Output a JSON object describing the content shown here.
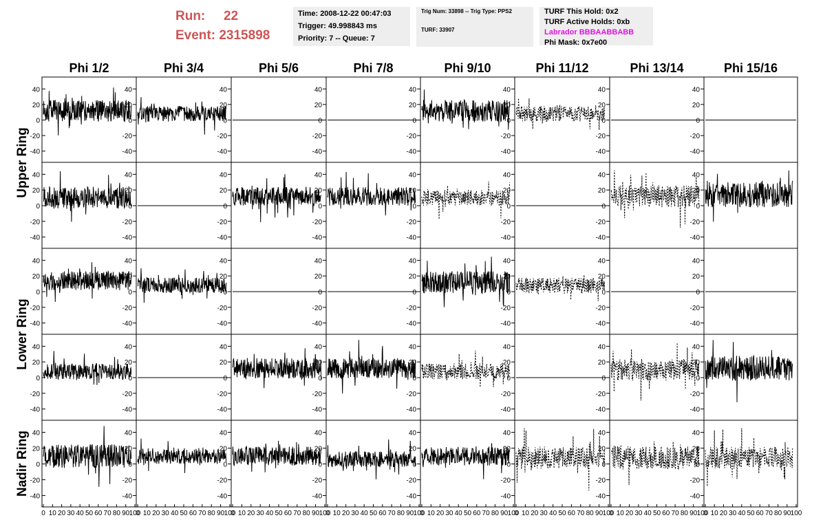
{
  "header": {
    "run_label": "Run:",
    "run_value": "22",
    "event_label": "Event:",
    "event_value": "2315898",
    "time": "Time: 2008-12-22 00:47:03",
    "trigger": "Trigger: 49.998843 ms",
    "priority": "Priority: 7 -- Queue: 7",
    "trig_num": "Trig Num: 33898 -- Trig Type: PPS2",
    "turf": "TURF: 33907",
    "turf_hold": "TURF This Hold: 0x2",
    "turf_active": "TURF Active Holds: 0xb",
    "labrador": "Labrador BBBAABBABB",
    "phi_mask": "Phi Mask: 0x7e00"
  },
  "chart_data": {
    "type": "line",
    "columns": [
      "Phi 1/2",
      "Phi 3/4",
      "Phi 5/6",
      "Phi 7/8",
      "Phi 9/10",
      "Phi 11/12",
      "Phi 13/14",
      "Phi 15/16"
    ],
    "ring_labels": [
      {
        "text": "Upper Ring",
        "rows": [
          0,
          1
        ]
      },
      {
        "text": "Lower Ring",
        "rows": [
          2,
          3
        ]
      },
      {
        "text": "Nadir Ring",
        "rows": [
          4
        ]
      }
    ],
    "xlim": [
      0,
      100
    ],
    "ylim": [
      -50,
      50
    ],
    "x_ticks": [
      "0",
      "10",
      "20",
      "30",
      "40",
      "50",
      "60",
      "70",
      "80",
      "90",
      "100"
    ],
    "y_ticks": [
      "-40",
      "-20",
      "0",
      "20",
      "40"
    ],
    "colors": {
      "trace": "#000000",
      "labrador": "#e012e0",
      "run": "#cc5555"
    },
    "panels": [
      [
        {
          "style": "solid",
          "active": true,
          "mean": 12,
          "amp": 14
        },
        {
          "style": "solid",
          "active": true,
          "mean": 8,
          "amp": 10
        },
        {
          "style": "flat",
          "active": false
        },
        {
          "style": "flat",
          "active": false
        },
        {
          "style": "solid",
          "active": true,
          "mean": 12,
          "amp": 14
        },
        {
          "style": "dashed",
          "active": true,
          "mean": 8,
          "amp": 10
        },
        {
          "style": "flat",
          "active": false
        },
        {
          "style": "flat",
          "active": false
        }
      ],
      [
        {
          "style": "solid",
          "active": true,
          "mean": 10,
          "amp": 14
        },
        {
          "style": "flat",
          "active": false
        },
        {
          "style": "solid",
          "active": true,
          "mean": 12,
          "amp": 12
        },
        {
          "style": "solid",
          "active": true,
          "mean": 12,
          "amp": 12
        },
        {
          "style": "dashed",
          "active": true,
          "mean": 10,
          "amp": 10
        },
        {
          "style": "flat",
          "active": false
        },
        {
          "style": "dashed",
          "active": true,
          "mean": 12,
          "amp": 14
        },
        {
          "style": "solid",
          "active": true,
          "mean": 14,
          "amp": 16
        }
      ],
      [
        {
          "style": "solid",
          "active": true,
          "mean": 14,
          "amp": 12
        },
        {
          "style": "solid",
          "active": true,
          "mean": 8,
          "amp": 10
        },
        {
          "style": "flat",
          "active": false
        },
        {
          "style": "flat",
          "active": false
        },
        {
          "style": "solid",
          "active": true,
          "mean": 12,
          "amp": 14
        },
        {
          "style": "dashed",
          "active": true,
          "mean": 8,
          "amp": 10
        },
        {
          "style": "flat",
          "active": false
        },
        {
          "style": "flat",
          "active": false
        }
      ],
      [
        {
          "style": "solid",
          "active": true,
          "mean": 8,
          "amp": 10
        },
        {
          "style": "flat",
          "active": false
        },
        {
          "style": "solid",
          "active": true,
          "mean": 12,
          "amp": 13
        },
        {
          "style": "solid",
          "active": true,
          "mean": 12,
          "amp": 13
        },
        {
          "style": "dashed",
          "active": true,
          "mean": 8,
          "amp": 10
        },
        {
          "style": "flat",
          "active": false
        },
        {
          "style": "dashed",
          "active": true,
          "mean": 10,
          "amp": 14
        },
        {
          "style": "solid",
          "active": true,
          "mean": 12,
          "amp": 16
        }
      ],
      [
        {
          "style": "solid",
          "active": true,
          "mean": 10,
          "amp": 15
        },
        {
          "style": "solid",
          "active": true,
          "mean": 10,
          "amp": 10
        },
        {
          "style": "solid",
          "active": true,
          "mean": 10,
          "amp": 12
        },
        {
          "style": "solid",
          "active": true,
          "mean": 6,
          "amp": 10
        },
        {
          "style": "solid",
          "active": true,
          "mean": 10,
          "amp": 12
        },
        {
          "style": "dashed",
          "active": true,
          "mean": 8,
          "amp": 14
        },
        {
          "style": "dashed",
          "active": true,
          "mean": 8,
          "amp": 15
        },
        {
          "style": "dashed",
          "active": true,
          "mean": 8,
          "amp": 14
        }
      ]
    ]
  }
}
